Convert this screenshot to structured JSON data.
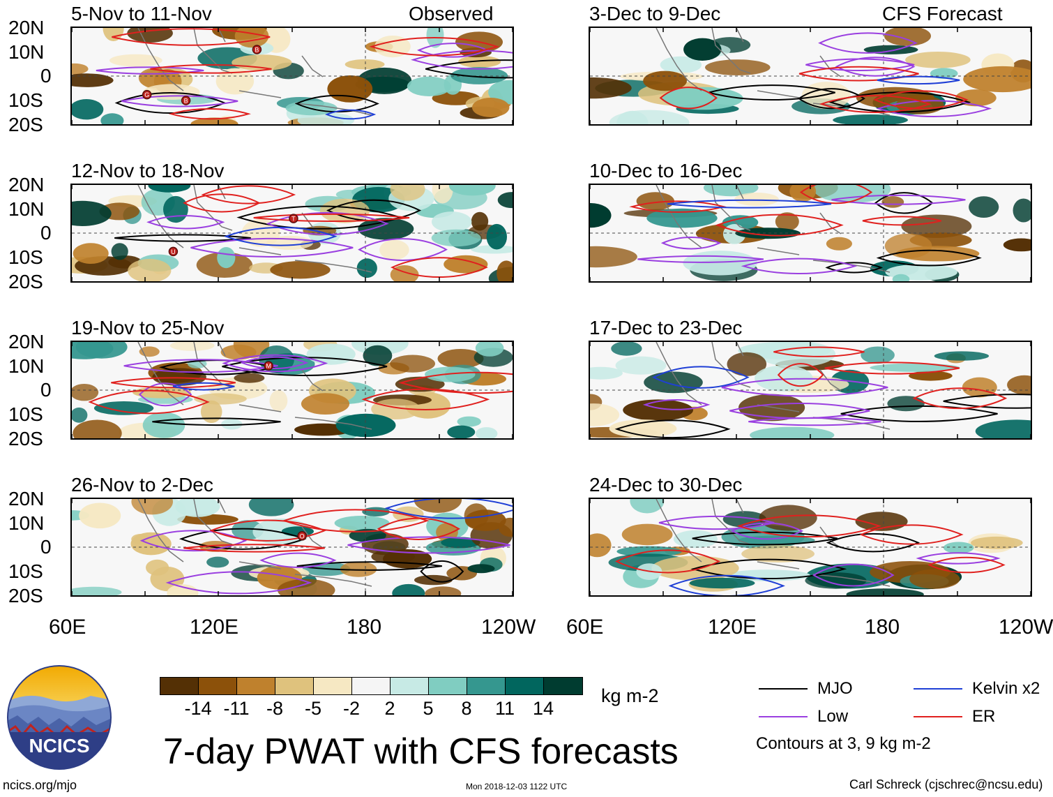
{
  "header": {
    "left_label": "Observed",
    "right_label": "CFS Forecast"
  },
  "panels": {
    "observed": [
      {
        "title": "5-Nov to 11-Nov"
      },
      {
        "title": "12-Nov to 18-Nov"
      },
      {
        "title": "19-Nov to 25-Nov"
      },
      {
        "title": "26-Nov to 2-Dec"
      }
    ],
    "forecast": [
      {
        "title": "3-Dec to 9-Dec"
      },
      {
        "title": "10-Dec to 16-Dec"
      },
      {
        "title": "17-Dec to 23-Dec"
      },
      {
        "title": "24-Dec to 30-Dec"
      }
    ]
  },
  "axes": {
    "y_labels": [
      "20N",
      "10N",
      "0",
      "10S",
      "20S"
    ],
    "x_labels": [
      "60E",
      "120E",
      "180",
      "120W"
    ]
  },
  "storm_markers": [
    "G",
    "B",
    "B",
    "T",
    "U",
    "M",
    "O"
  ],
  "colorbar": {
    "colors": [
      "#543005",
      "#8c510a",
      "#bf812d",
      "#dfc27d",
      "#f6e8c3",
      "#f5f5f5",
      "#c7eae5",
      "#80cdc1",
      "#35978f",
      "#01665e",
      "#003c30"
    ],
    "ticks": [
      "-14",
      "-11",
      "-8",
      "-5",
      "-2",
      "2",
      "5",
      "8",
      "11",
      "14"
    ],
    "units": "kg m-2"
  },
  "legend": {
    "items": [
      {
        "label": "MJO",
        "color": "#000000"
      },
      {
        "label": "Kelvin x2",
        "color": "#1f3fd6"
      },
      {
        "label": "Low",
        "color": "#9a3fe0"
      },
      {
        "label": "ER",
        "color": "#e0201e"
      }
    ],
    "note": "Contours at 3, 9 kg m-2"
  },
  "main_title": "7-day PWAT with CFS forecasts",
  "logo_text": "NCICS",
  "footer": {
    "url": "ncics.org/mjo",
    "timestamp": "Mon 2018-12-03 1122 UTC",
    "author": "Carl Schreck (cjschrec@ncsu.edu)"
  }
}
